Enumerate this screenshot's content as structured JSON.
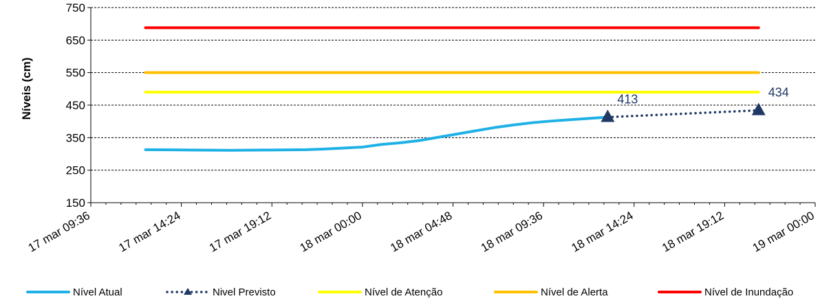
{
  "chart_data": {
    "type": "line",
    "ylabel": "Níveis  (cm)",
    "xlabel": "",
    "ylim": [
      150,
      750
    ],
    "yticks": [
      "150",
      "250",
      "350",
      "450",
      "550",
      "650",
      "750"
    ],
    "xlim": [
      "17 mar 09:36",
      "19 mar 00:00"
    ],
    "xticks": [
      "17 mar 09:36",
      "17 mar 14:24",
      "17 mar 19:12",
      "18 mar 00:00",
      "18 mar 04:48",
      "18 mar 09:36",
      "18 mar 14:24",
      "18 mar 19:12",
      "19 mar 00:00"
    ],
    "grid": "horizontal-dashed",
    "legend_position": "bottom",
    "series": [
      {
        "name": "Nível Atual",
        "color": "#1fb1e6",
        "style": "solid",
        "x": [
          "17 mar 12:30",
          "17 mar 15:00",
          "17 mar 17:00",
          "17 mar 19:00",
          "17 mar 21:00",
          "17 mar 22:00",
          "17 mar 23:00",
          "18 mar 00:00",
          "18 mar 01:00",
          "18 mar 02:00",
          "18 mar 03:00",
          "18 mar 04:00",
          "18 mar 05:00",
          "18 mar 06:00",
          "18 mar 07:00",
          "18 mar 08:00",
          "18 mar 09:00",
          "18 mar 10:00",
          "18 mar 11:00",
          "18 mar 12:00",
          "18 mar 13:00"
        ],
        "values": [
          313,
          312,
          311,
          312,
          313,
          315,
          318,
          321,
          329,
          334,
          341,
          351,
          361,
          371,
          381,
          389,
          396,
          401,
          405,
          409,
          413
        ]
      },
      {
        "name": "Nivel Previsto",
        "color": "#1f3864",
        "style": "dotted",
        "marker": "triangle",
        "x": [
          "18 mar 13:00",
          "18 mar 21:00"
        ],
        "values": [
          413,
          434
        ],
        "data_labels": [
          "413",
          "434"
        ]
      },
      {
        "name": "Nível de Atenção",
        "color": "#ffff00",
        "style": "solid",
        "x": [
          "17 mar 12:30",
          "18 mar 21:00"
        ],
        "values": [
          490,
          490
        ]
      },
      {
        "name": "Nível de Alerta",
        "color": "#ffc000",
        "style": "solid",
        "x": [
          "17 mar 12:30",
          "18 mar 21:00"
        ],
        "values": [
          550,
          550
        ]
      },
      {
        "name": "Nível de Inundação",
        "color": "#ff0000",
        "style": "solid",
        "x": [
          "17 mar 12:30",
          "18 mar 21:00"
        ],
        "values": [
          688,
          688
        ]
      }
    ]
  }
}
